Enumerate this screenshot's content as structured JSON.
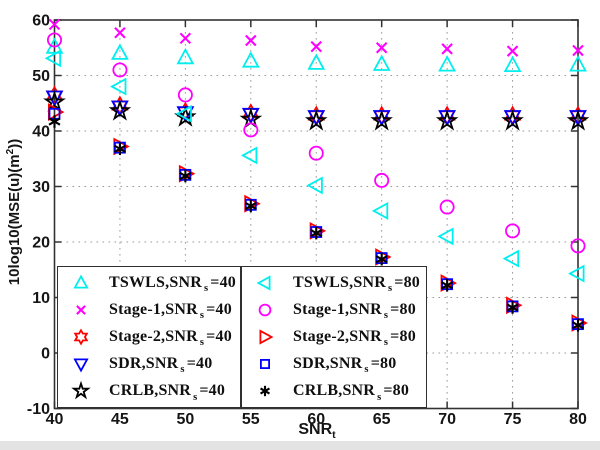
{
  "chart_data": {
    "type": "scatter",
    "title": "",
    "xlabel": {
      "pre": "SNR",
      "sub": "t"
    },
    "ylabel": {
      "pre": "10log10(MSE(u)(m",
      "sup": "2",
      "post": "))"
    },
    "xlim": [
      40,
      80
    ],
    "ylim": [
      -10,
      60
    ],
    "xticks": [
      "40",
      "45",
      "50",
      "55",
      "60",
      "65",
      "70",
      "75",
      "80"
    ],
    "yticks": [
      "-10",
      "0",
      "10",
      "20",
      "30",
      "40",
      "50",
      "60"
    ],
    "grid": true,
    "legend_position": "two boxes, bottom inside plot",
    "x": [
      40,
      45,
      50,
      55,
      60,
      65,
      70,
      75,
      80
    ],
    "series": [
      {
        "key": "tswls-snr40",
        "label": {
          "pre": "TSWLS,SNR",
          "sub": "s",
          "post": "=40"
        },
        "marker": "triangle-up",
        "color": "#00EEEE",
        "legend_box": 0,
        "values": [
          55.1,
          54.0,
          53.2,
          52.6,
          52.2,
          52.0,
          51.9,
          51.8,
          51.9
        ]
      },
      {
        "key": "stage1-snr40",
        "label": {
          "pre": "Stage-1,SNR",
          "sub": "s",
          "post": "=40"
        },
        "marker": "x",
        "color": "#FF00FF",
        "legend_box": 0,
        "values": [
          59.2,
          57.7,
          56.7,
          56.3,
          55.2,
          55.0,
          54.8,
          54.4,
          54.5
        ]
      },
      {
        "key": "stage2-snr40",
        "label": {
          "pre": "Stage-2,SNR",
          "sub": "s",
          "post": "=40"
        },
        "marker": "hexagram",
        "color": "#FF0000",
        "legend_box": 0,
        "values": [
          46.4,
          44.6,
          43.5,
          43.2,
          42.8,
          42.8,
          42.8,
          42.8,
          42.8
        ]
      },
      {
        "key": "sdr-snr40",
        "label": {
          "pre": "SDR,SNR",
          "sub": "s",
          "post": "=40"
        },
        "marker": "triangle-down",
        "color": "#0000FF",
        "legend_box": 0,
        "values": [
          46.1,
          44.3,
          43.3,
          43.0,
          42.6,
          42.6,
          42.6,
          42.6,
          42.6
        ]
      },
      {
        "key": "crlb-snr40",
        "label": {
          "pre": "CRLB,SNR",
          "sub": "s",
          "post": "=40"
        },
        "marker": "pentagram",
        "color": "#000000",
        "legend_box": 0,
        "values": [
          45.2,
          43.6,
          42.5,
          42.1,
          41.8,
          41.8,
          41.8,
          41.8,
          41.8
        ]
      },
      {
        "key": "tswls-snr80",
        "label": {
          "pre": "TSWLS,SNR",
          "sub": "s",
          "post": "=80"
        },
        "marker": "triangle-left",
        "color": "#00EEEE",
        "legend_box": 1,
        "values": [
          53.1,
          48.0,
          43.1,
          35.6,
          30.2,
          25.6,
          21.0,
          17.0,
          14.3
        ]
      },
      {
        "key": "stage1-snr80",
        "label": {
          "pre": "Stage-1,SNR",
          "sub": "s",
          "post": "=80"
        },
        "marker": "circle",
        "color": "#FF00FF",
        "legend_box": 1,
        "values": [
          56.4,
          51.0,
          46.5,
          40.2,
          36.0,
          31.1,
          26.3,
          22.0,
          19.3
        ]
      },
      {
        "key": "stage2-snr80",
        "label": {
          "pre": "Stage-2,SNR",
          "sub": "s",
          "post": "=80"
        },
        "marker": "triangle-right",
        "color": "#FF0000",
        "legend_box": 1,
        "values": [
          43.4,
          37.2,
          32.3,
          26.9,
          22.0,
          17.3,
          12.6,
          8.6,
          5.4
        ]
      },
      {
        "key": "sdr-snr80",
        "label": {
          "pre": "SDR,SNR",
          "sub": "s",
          "post": "=80"
        },
        "marker": "square",
        "color": "#0000FF",
        "legend_box": 1,
        "values": [
          43.1,
          37.0,
          32.1,
          26.7,
          21.8,
          17.1,
          12.4,
          8.4,
          5.2
        ]
      },
      {
        "key": "crlb-snr80",
        "label": {
          "pre": "CRLB,SNR",
          "sub": "s",
          "post": "=80"
        },
        "marker": "asterisk",
        "color": "#000000",
        "legend_box": 1,
        "values": [
          41.7,
          36.8,
          31.9,
          26.5,
          21.6,
          16.9,
          12.2,
          8.2,
          5.0
        ]
      }
    ],
    "style": {
      "frame_color": "#333333",
      "grid_color": "#999999",
      "tick_label_color": "#151515",
      "background": "#ffffff"
    }
  }
}
